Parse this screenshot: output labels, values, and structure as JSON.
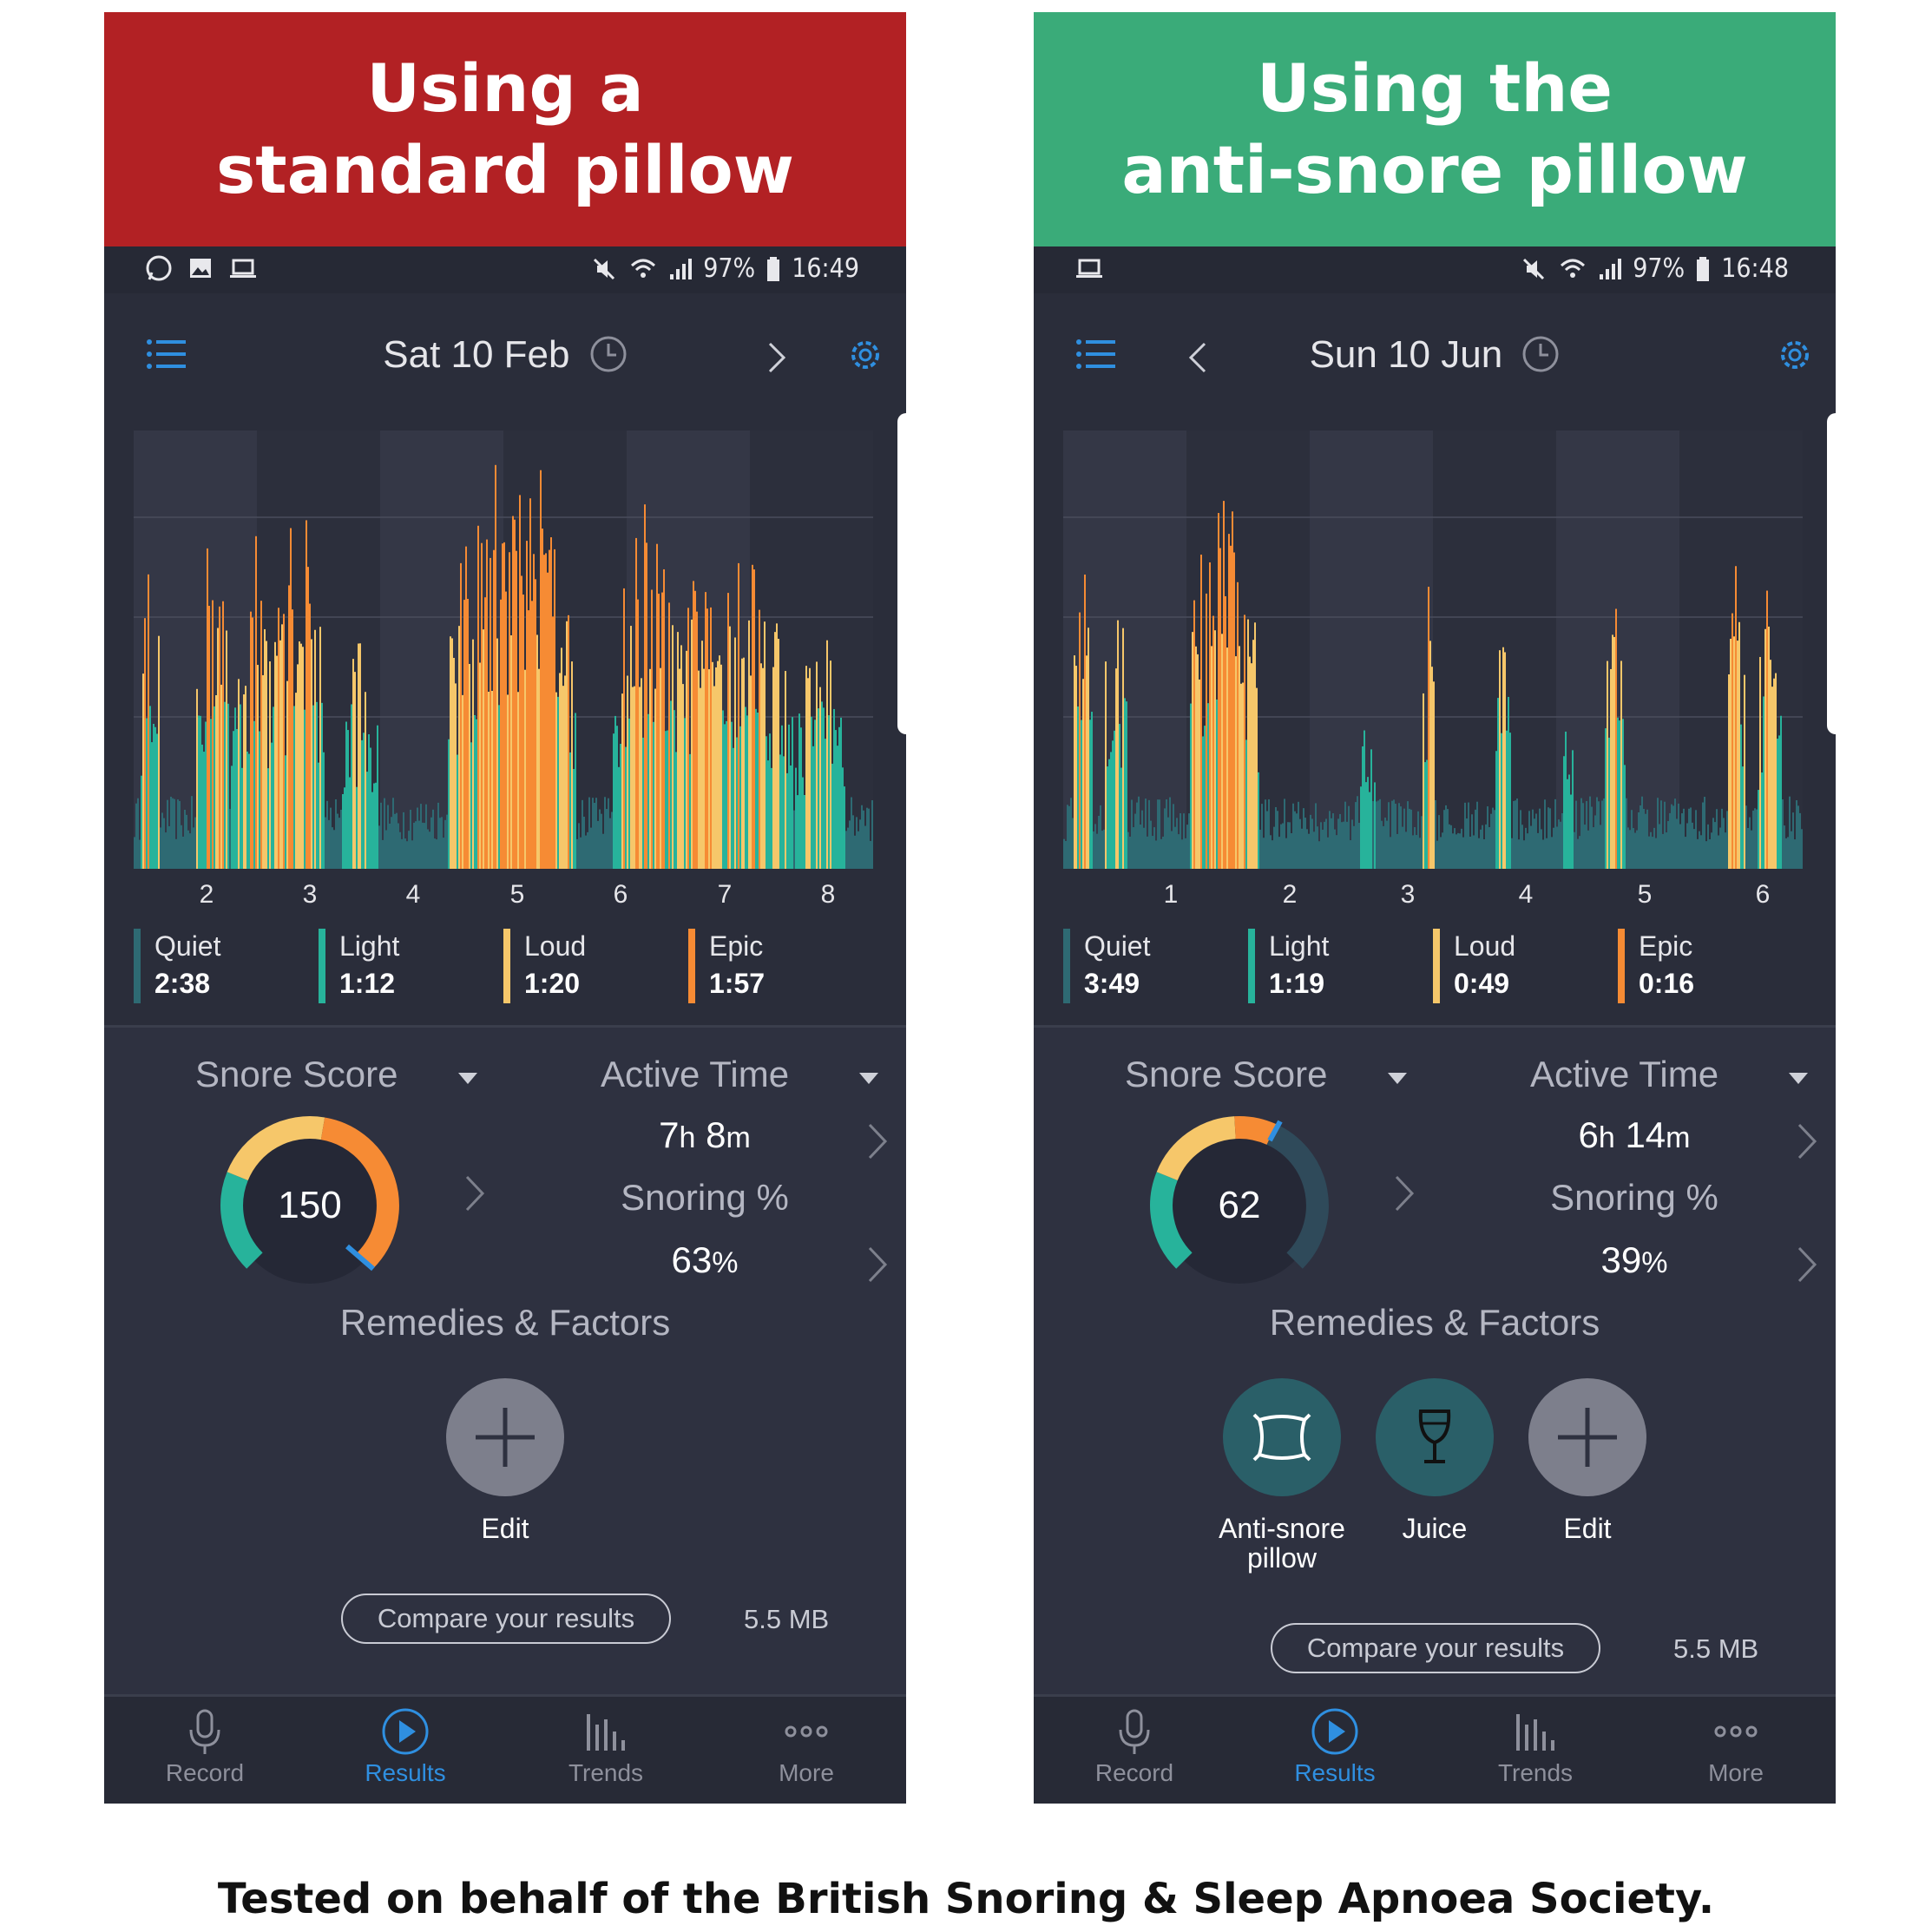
{
  "colors": {
    "standard_banner": "#b22124",
    "anti_banner": "#3aab79",
    "quiet": "#2e6a73",
    "light": "#27b39b",
    "loud": "#f6c76a",
    "epic": "#f68b34",
    "accent": "#2f8fe0"
  },
  "footer": "Tested on behalf of the British Snoring & Sleep Apnoea Society.",
  "panels": [
    {
      "banner_line1": "Using a",
      "banner_line2": "standard pillow",
      "status_battery": "97%",
      "status_time": "16:49",
      "date": "Sat 10 Feb",
      "ticks": [
        "2",
        "3",
        "4",
        "5",
        "6",
        "7",
        "8"
      ],
      "legend": [
        {
          "name": "Quiet",
          "value": "2:38"
        },
        {
          "name": "Light",
          "value": "1:12"
        },
        {
          "name": "Loud",
          "value": "1:20"
        },
        {
          "name": "Epic",
          "value": "1:57"
        }
      ],
      "snore_score_label": "Snore Score",
      "snore_score": "150",
      "active_time_label": "Active Time",
      "active_hours": "7",
      "active_minutes": "8",
      "snoring_label": "Snoring %",
      "snoring_value": "63",
      "percent_sign": "%",
      "hour_unit": "h",
      "minute_unit": "m",
      "remedies_title": "Remedies & Factors",
      "remedies": [
        {
          "label": "Edit",
          "icon": "plus-icon"
        }
      ],
      "compare": "Compare your results",
      "size": "5.5 MB",
      "tabs": [
        "Record",
        "Results",
        "Trends",
        "More"
      ]
    },
    {
      "banner_line1": "Using the",
      "banner_line2": "anti-snore pillow",
      "status_battery": "97%",
      "status_time": "16:48",
      "date": "Sun 10 Jun",
      "ticks": [
        "1",
        "2",
        "3",
        "4",
        "5",
        "6"
      ],
      "legend": [
        {
          "name": "Quiet",
          "value": "3:49"
        },
        {
          "name": "Light",
          "value": "1:19"
        },
        {
          "name": "Loud",
          "value": "0:49"
        },
        {
          "name": "Epic",
          "value": "0:16"
        }
      ],
      "snore_score_label": "Snore Score",
      "snore_score": "62",
      "active_time_label": "Active Time",
      "active_hours": "6",
      "active_minutes": "14",
      "snoring_label": "Snoring %",
      "snoring_value": "39",
      "percent_sign": "%",
      "hour_unit": "h",
      "minute_unit": "m",
      "remedies_title": "Remedies & Factors",
      "remedies": [
        {
          "label": "Anti-snore",
          "label2": "pillow",
          "icon": "pillow-icon"
        },
        {
          "label": "Juice",
          "icon": "wine-glass-icon"
        },
        {
          "label": "Edit",
          "icon": "plus-icon"
        }
      ],
      "compare": "Compare your results",
      "size": "5.5 MB",
      "tabs": [
        "Record",
        "Results",
        "Trends",
        "More"
      ]
    }
  ]
}
